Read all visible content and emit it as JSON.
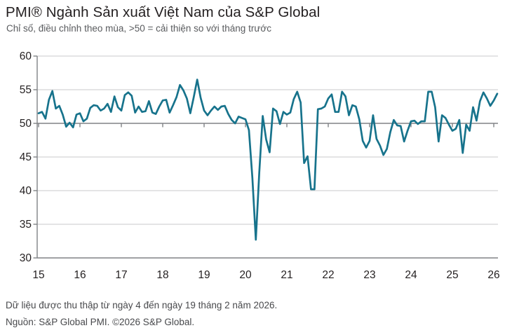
{
  "header": {
    "title": "PMI® Ngành Sản xuất Việt Nam của S&P Global",
    "subtitle": "Chỉ số, điều chỉnh theo mùa, >50 = cải thiện so với tháng trước"
  },
  "footer": {
    "line1": "Dữ liệu được thu thập từ ngày 4 đến ngày 19 tháng 2 năm 2026.",
    "line2": "Nguồn: S&P Global PMI. ©2026 S&P Global."
  },
  "chart_data": {
    "type": "line",
    "title": "PMI® Ngành Sản xuất Việt Nam của S&P Global",
    "xlabel": "",
    "ylabel": "",
    "x_monthly_from": "2015-01",
    "x_monthly_to": "2026-02",
    "x_tick_labels": [
      "15",
      "16",
      "17",
      "18",
      "19",
      "20",
      "21",
      "22",
      "23",
      "24",
      "25",
      "26"
    ],
    "y_ticks": [
      30,
      35,
      40,
      45,
      50,
      55,
      60
    ],
    "ylim": [
      30,
      60
    ],
    "baseline": 50,
    "grid": "horizontal",
    "legend": "none",
    "line_color": "#17738c",
    "grid_color": "#c9cacb",
    "axis_color": "#808285",
    "tick_label_color": "#231f20",
    "values": [
      51.5,
      51.7,
      50.7,
      53.5,
      54.8,
      52.2,
      52.6,
      51.3,
      49.5,
      50.1,
      49.4,
      51.3,
      51.5,
      50.3,
      50.7,
      52.3,
      52.7,
      52.6,
      51.9,
      52.2,
      52.9,
      51.7,
      54.0,
      52.4,
      51.9,
      54.2,
      54.6,
      54.1,
      51.6,
      52.5,
      51.7,
      51.8,
      53.3,
      51.6,
      51.4,
      52.5,
      53.4,
      53.5,
      51.6,
      52.7,
      53.9,
      55.7,
      54.9,
      53.7,
      51.5,
      53.9,
      56.5,
      53.8,
      51.9,
      51.2,
      51.9,
      52.5,
      52.0,
      52.5,
      52.6,
      51.4,
      50.5,
      50.0,
      51.0,
      50.8,
      50.6,
      49.0,
      41.9,
      32.7,
      42.7,
      51.1,
      47.6,
      45.7,
      52.2,
      51.8,
      49.9,
      51.7,
      51.3,
      51.6,
      53.6,
      54.7,
      53.1,
      44.1,
      45.1,
      40.2,
      40.2,
      52.1,
      52.2,
      52.5,
      53.7,
      54.3,
      51.7,
      51.7,
      54.7,
      54.0,
      51.2,
      52.7,
      52.5,
      50.6,
      47.4,
      46.4,
      47.4,
      51.2,
      47.7,
      46.7,
      45.3,
      46.2,
      48.7,
      50.5,
      49.7,
      49.6,
      47.3,
      48.9,
      50.3,
      50.4,
      49.9,
      50.3,
      50.3,
      54.7,
      54.7,
      52.4,
      47.3,
      51.2,
      50.8,
      49.8,
      48.9,
      49.2,
      50.5,
      45.6,
      49.8,
      48.9,
      52.4,
      50.4,
      53.3,
      54.6,
      53.7,
      52.6,
      53.4,
      54.4
    ]
  }
}
